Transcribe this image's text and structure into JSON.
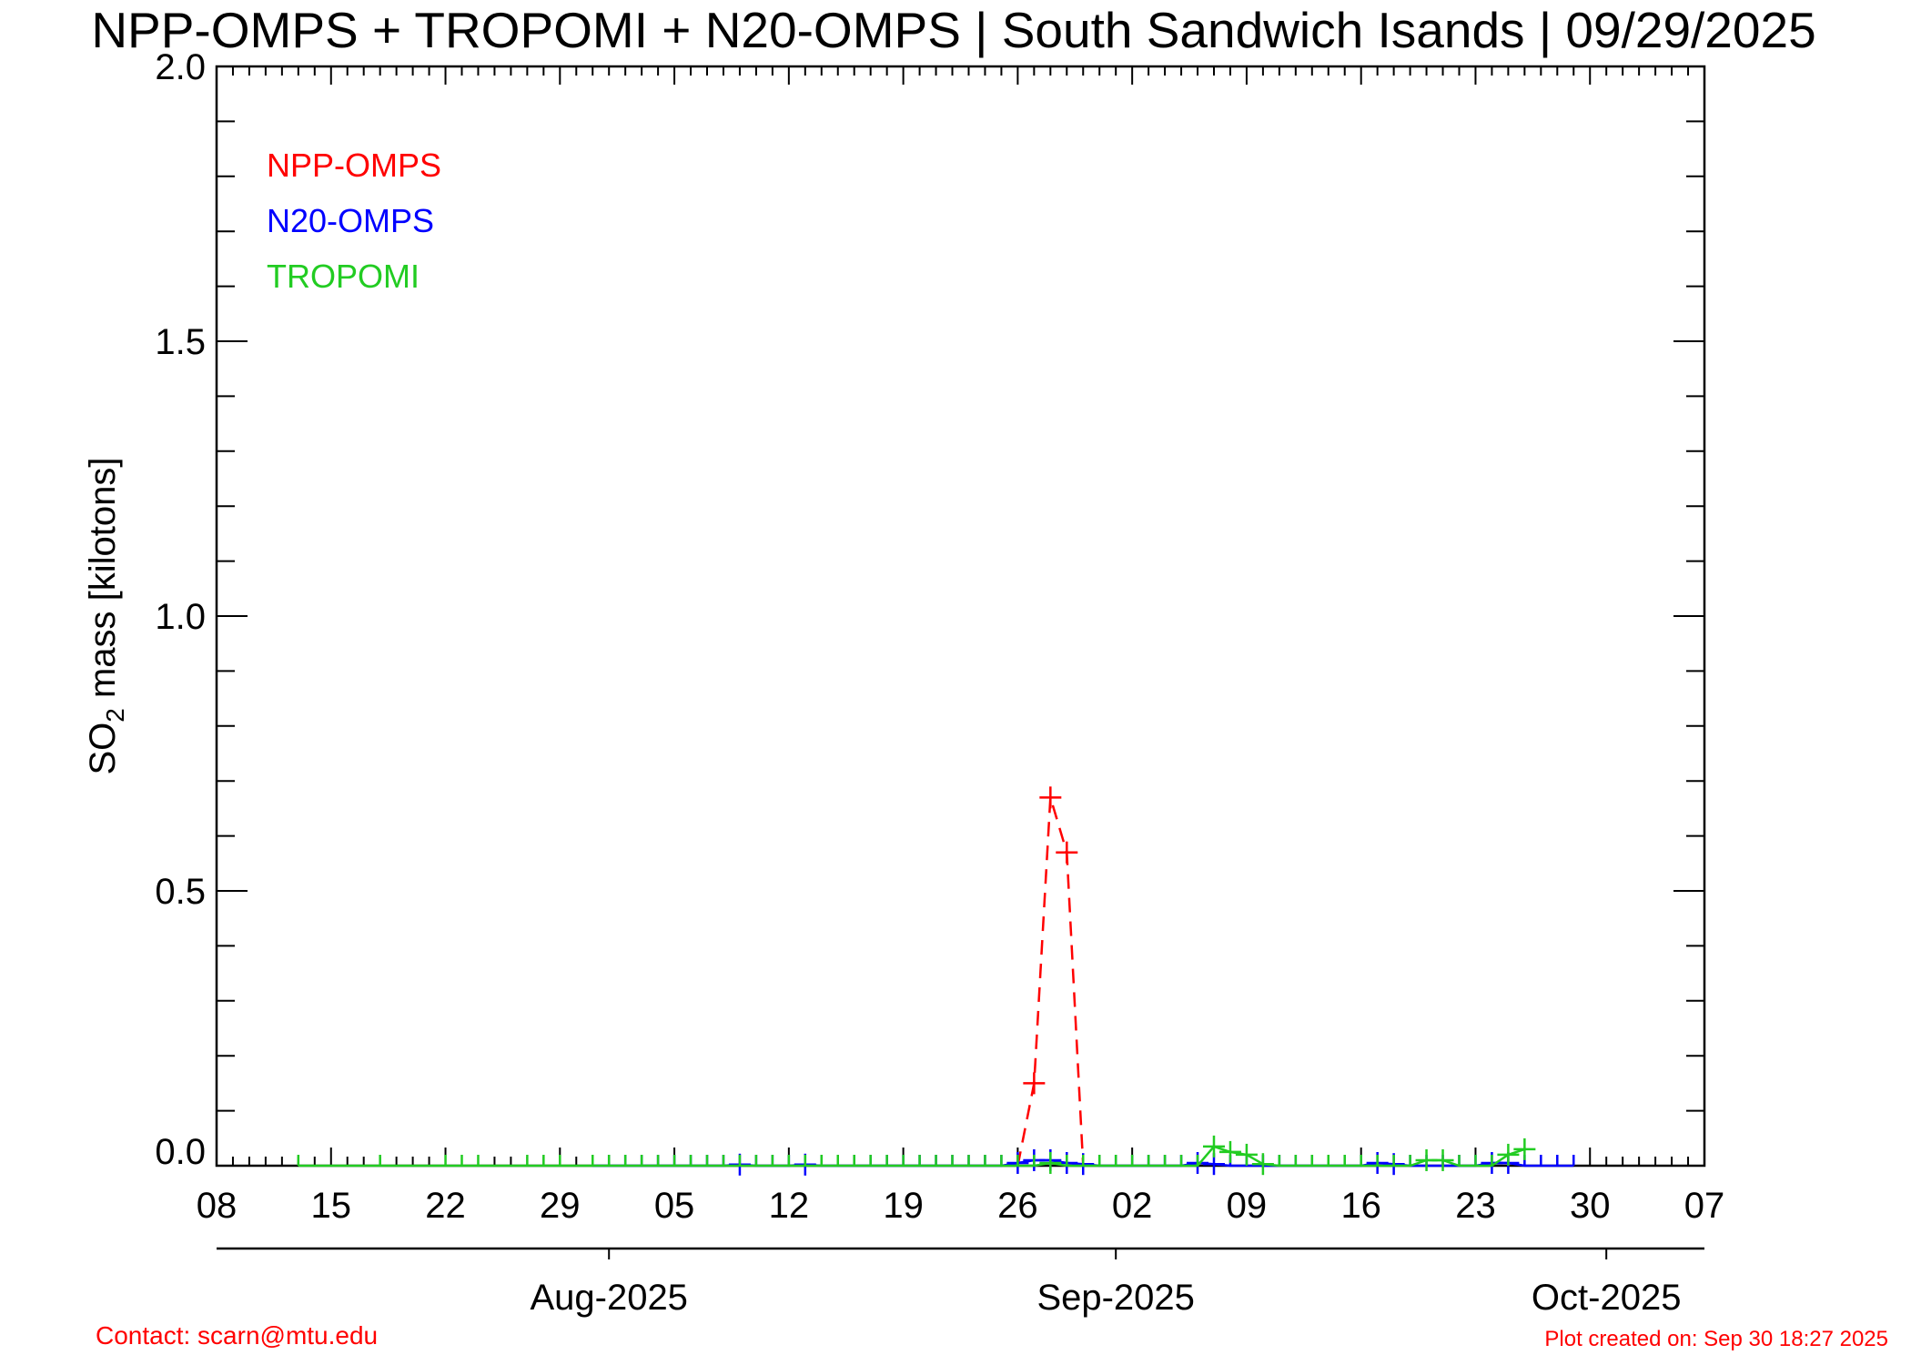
{
  "chart_data": {
    "type": "line",
    "title": "NPP-OMPS + TROPOMI + N20-OMPS | South Sandwich Isands | 09/29/2025",
    "ylabel_main": "SO",
    "ylabel_sub": "2",
    "ylabel_rest": " mass [kilotons]",
    "xlim": [
      "2025-07-08",
      "2025-10-07"
    ],
    "ylim": [
      0,
      2.0
    ],
    "y_ticks": [
      0.0,
      0.5,
      1.0,
      1.5,
      2.0
    ],
    "y_tick_labels": [
      "0.0",
      "0.5",
      "1.0",
      "1.5",
      "2.0"
    ],
    "x_ticks": [
      "2025-07-08",
      "2025-07-15",
      "2025-07-22",
      "2025-07-29",
      "2025-08-05",
      "2025-08-12",
      "2025-08-19",
      "2025-08-26",
      "2025-09-02",
      "2025-09-09",
      "2025-09-16",
      "2025-09-23",
      "2025-09-30",
      "2025-10-07"
    ],
    "x_tick_labels": [
      "08",
      "15",
      "22",
      "29",
      "05",
      "12",
      "19",
      "26",
      "02",
      "09",
      "16",
      "23",
      "30",
      "07"
    ],
    "month_ticks": [
      "2025-08-01",
      "2025-09-01",
      "2025-10-01"
    ],
    "month_labels": [
      "Aug-2025",
      "Sep-2025",
      "Oct-2025"
    ],
    "legend_placement": "top-left",
    "series": [
      {
        "name": "NPP-OMPS",
        "color": "#ff0000",
        "dash": true,
        "x": [
          "2025-08-26",
          "2025-08-27",
          "2025-08-28",
          "2025-08-29",
          "2025-08-30"
        ],
        "values": [
          0.0,
          0.15,
          0.67,
          0.57,
          0.0
        ]
      },
      {
        "name": "N20-OMPS",
        "color": "#0000ff",
        "dash": false,
        "x": [
          "2025-07-31",
          "2025-08-01",
          "2025-08-02",
          "2025-08-03",
          "2025-08-04",
          "2025-08-05",
          "2025-08-06",
          "2025-08-07",
          "2025-08-08",
          "2025-08-09",
          "2025-08-10",
          "2025-08-11",
          "2025-08-12",
          "2025-08-13",
          "2025-08-14",
          "2025-08-15",
          "2025-08-16",
          "2025-08-17",
          "2025-08-18",
          "2025-08-19",
          "2025-08-20",
          "2025-08-21",
          "2025-08-22",
          "2025-08-23",
          "2025-08-24",
          "2025-08-25",
          "2025-08-26",
          "2025-08-27",
          "2025-08-28",
          "2025-08-29",
          "2025-08-30",
          "2025-08-31",
          "2025-09-01",
          "2025-09-02",
          "2025-09-03",
          "2025-09-04",
          "2025-09-05",
          "2025-09-06",
          "2025-09-07",
          "2025-09-08",
          "2025-09-09",
          "2025-09-10",
          "2025-09-11",
          "2025-09-12",
          "2025-09-13",
          "2025-09-14",
          "2025-09-15",
          "2025-09-16",
          "2025-09-17",
          "2025-09-18",
          "2025-09-19",
          "2025-09-20",
          "2025-09-21",
          "2025-09-22",
          "2025-09-23",
          "2025-09-24",
          "2025-09-25",
          "2025-09-26",
          "2025-09-27",
          "2025-09-28",
          "2025-09-29"
        ],
        "values": [
          0,
          0,
          0,
          0,
          0,
          0,
          0,
          0,
          0,
          0.002,
          0,
          0,
          0,
          0.002,
          0,
          0,
          0,
          0,
          0,
          0,
          0,
          0,
          0,
          0,
          0,
          0,
          0.005,
          0.01,
          0.01,
          0.005,
          0.003,
          0,
          0,
          0,
          0,
          0,
          0,
          0.005,
          0.003,
          0,
          0,
          0,
          0,
          0,
          0,
          0,
          0,
          0,
          0.005,
          0.003,
          0,
          0,
          0,
          0,
          0,
          0.005,
          0.005,
          0,
          0,
          0,
          0
        ]
      },
      {
        "name": "TROPOMI",
        "color": "#22cc22",
        "dash": false,
        "x": [
          "2025-07-13",
          "2025-07-18",
          "2025-07-22",
          "2025-07-23",
          "2025-07-24",
          "2025-07-27",
          "2025-07-28",
          "2025-07-29",
          "2025-07-31",
          "2025-08-01",
          "2025-08-02",
          "2025-08-03",
          "2025-08-04",
          "2025-08-05",
          "2025-08-06",
          "2025-08-07",
          "2025-08-08",
          "2025-08-09",
          "2025-08-10",
          "2025-08-11",
          "2025-08-12",
          "2025-08-13",
          "2025-08-14",
          "2025-08-15",
          "2025-08-16",
          "2025-08-17",
          "2025-08-18",
          "2025-08-19",
          "2025-08-20",
          "2025-08-21",
          "2025-08-22",
          "2025-08-23",
          "2025-08-24",
          "2025-08-25",
          "2025-08-26",
          "2025-08-27",
          "2025-08-28",
          "2025-08-29",
          "2025-08-30",
          "2025-08-31",
          "2025-09-01",
          "2025-09-02",
          "2025-09-03",
          "2025-09-04",
          "2025-09-05",
          "2025-09-06",
          "2025-09-07",
          "2025-09-08",
          "2025-09-09",
          "2025-09-10",
          "2025-09-11",
          "2025-09-12",
          "2025-09-13",
          "2025-09-14",
          "2025-09-15",
          "2025-09-16",
          "2025-09-17",
          "2025-09-18",
          "2025-09-19",
          "2025-09-20",
          "2025-09-21",
          "2025-09-22",
          "2025-09-23",
          "2025-09-24",
          "2025-09-25",
          "2025-09-26"
        ],
        "values": [
          0,
          0,
          0,
          0,
          0,
          0,
          0,
          0,
          0,
          0,
          0,
          0,
          0,
          0,
          0,
          0,
          0,
          0,
          0,
          0,
          0,
          0,
          0,
          0,
          0,
          0,
          0,
          0,
          0,
          0,
          0,
          0,
          0,
          0,
          0,
          0,
          0.005,
          0,
          0,
          0,
          0,
          0,
          0,
          0,
          0,
          0,
          0.035,
          0.025,
          0.02,
          0.003,
          0,
          0,
          0,
          0,
          0,
          0,
          0,
          0,
          0,
          0.01,
          0.01,
          0,
          0,
          0,
          0.02,
          0.03
        ]
      }
    ]
  },
  "footer": {
    "contact": "Contact: scarn@mtu.edu",
    "created": "Plot created on: Sep 30 18:27 2025"
  }
}
